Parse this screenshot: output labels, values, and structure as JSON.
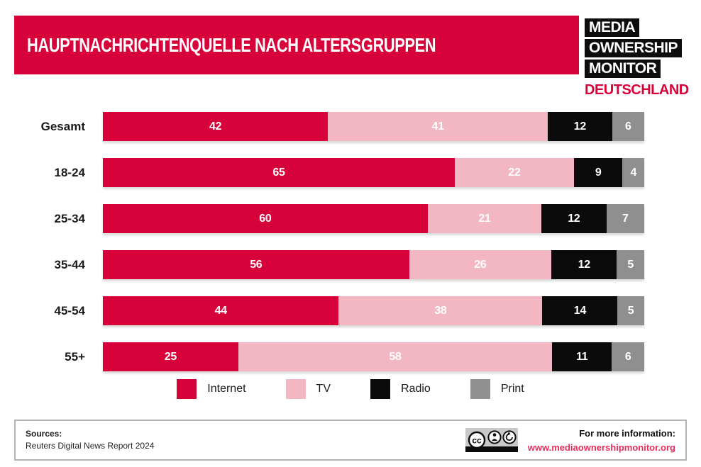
{
  "header": {
    "title": "HAUPTNACHRICHTENQUELLE NACH ALTERSGRUPPEN"
  },
  "logo": {
    "lines": [
      "MEDIA",
      "OWNERSHIP",
      "MONITOR"
    ],
    "country": "DEUTSCHLAND"
  },
  "chart_data": {
    "type": "bar",
    "stacked": true,
    "orientation": "horizontal",
    "title": "HAUPTNACHRICHTENQUELLE NACH ALTERSGRUPPEN",
    "categories": [
      "Gesamt",
      "18-24",
      "25-34",
      "35-44",
      "45-54",
      "55+"
    ],
    "series": [
      {
        "name": "Internet",
        "color": "#d8023a",
        "values": [
          42,
          65,
          60,
          56,
          44,
          25
        ]
      },
      {
        "name": "TV",
        "color": "#f3b7c3",
        "values": [
          41,
          22,
          21,
          26,
          38,
          58
        ]
      },
      {
        "name": "Radio",
        "color": "#0b0b0b",
        "values": [
          12,
          9,
          12,
          12,
          14,
          11
        ]
      },
      {
        "name": "Print",
        "color": "#8f8f8f",
        "values": [
          6,
          4,
          7,
          5,
          5,
          6
        ]
      }
    ],
    "value_labels": true,
    "xlim": [
      0,
      100
    ],
    "legend_position": "bottom",
    "grid": false
  },
  "footer": {
    "sources_label": "Sources:",
    "sources_text": "Reuters Digital News Report 2024",
    "license_icons": [
      "cc-icon",
      "attribution-icon",
      "share-alike-icon"
    ],
    "info_label": "For more information:",
    "info_url": "www.mediaownershipmonitor.org"
  },
  "colors": {
    "brand_red": "#d8023a",
    "pink": "#f3b7c3",
    "black": "#0b0b0b",
    "gray": "#8f8f8f",
    "url_red": "#e62e5c",
    "value_label": "#ffffff"
  }
}
